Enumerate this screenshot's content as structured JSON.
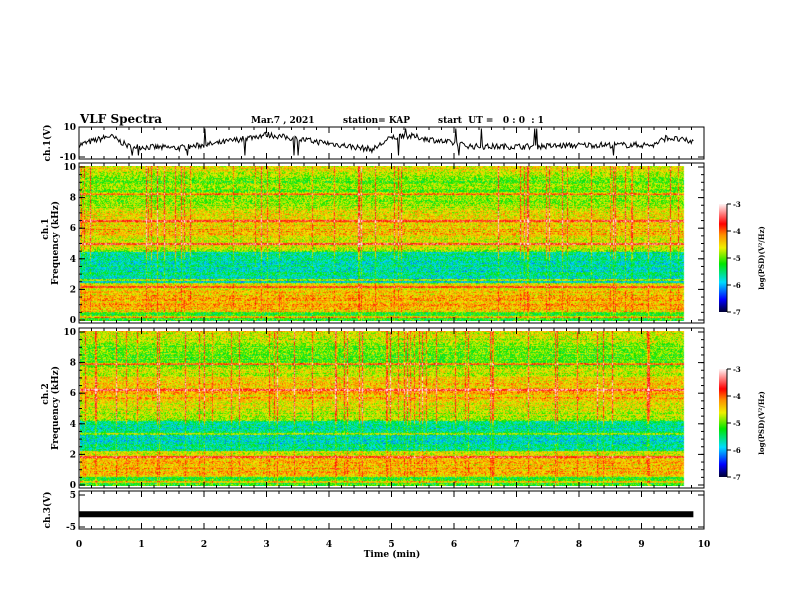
{
  "chart_data": {
    "type": "heatmap",
    "title": "VLF Spectra",
    "date": "Mar.7 , 2021",
    "station": "station= KAP",
    "start_ut": "start  UT =   0 : 0  : 1",
    "xlabel": "Time  (min)",
    "xlim": [
      0,
      10
    ],
    "x_ticks": [
      "0",
      "1",
      "2",
      "3",
      "4",
      "5",
      "6",
      "7",
      "8",
      "9",
      "10"
    ],
    "data_end_min": 9.83,
    "panels": [
      {
        "id": "ch1-waveform",
        "type": "line",
        "ylabel": "ch.1(V)",
        "ylim": [
          -10,
          10
        ],
        "y_ticks": [
          "10",
          "-10"
        ]
      },
      {
        "id": "ch1-spectrogram",
        "type": "heatmap",
        "ylabel_top": "ch.1",
        "ylabel": "Frequency  (kHz)",
        "ylim": [
          0,
          10
        ],
        "y_ticks": [
          "0",
          "2",
          "4",
          "6",
          "8",
          "10"
        ],
        "strong_bands_khz": [
          0.3,
          2.2,
          2.7,
          5.0,
          6.5,
          8.2
        ],
        "weak_region_khz": [
          2.5,
          4.5
        ]
      },
      {
        "id": "ch2-spectrogram",
        "type": "heatmap",
        "ylabel_top": "ch.2",
        "ylabel": "Frequency  (kHz)",
        "ylim": [
          0,
          10
        ],
        "y_ticks": [
          "0",
          "2",
          "4",
          "6",
          "8",
          "10"
        ],
        "strong_bands_khz": [
          0.3,
          1.9,
          3.4,
          6.2,
          7.9
        ],
        "weak_region_khz": [
          2.3,
          4.2
        ]
      },
      {
        "id": "ch3-waveform",
        "type": "line",
        "ylabel": "ch.3(V)",
        "ylim": [
          -5,
          5
        ],
        "y_ticks": [
          "5",
          "-5"
        ],
        "constant_value": -1
      }
    ],
    "colorbar": {
      "label": "log(PSD)(V²/Hz)",
      "range": [
        -7,
        -3
      ],
      "ticks": [
        "-3",
        "-4",
        "-5",
        "-6",
        "-7"
      ]
    }
  }
}
